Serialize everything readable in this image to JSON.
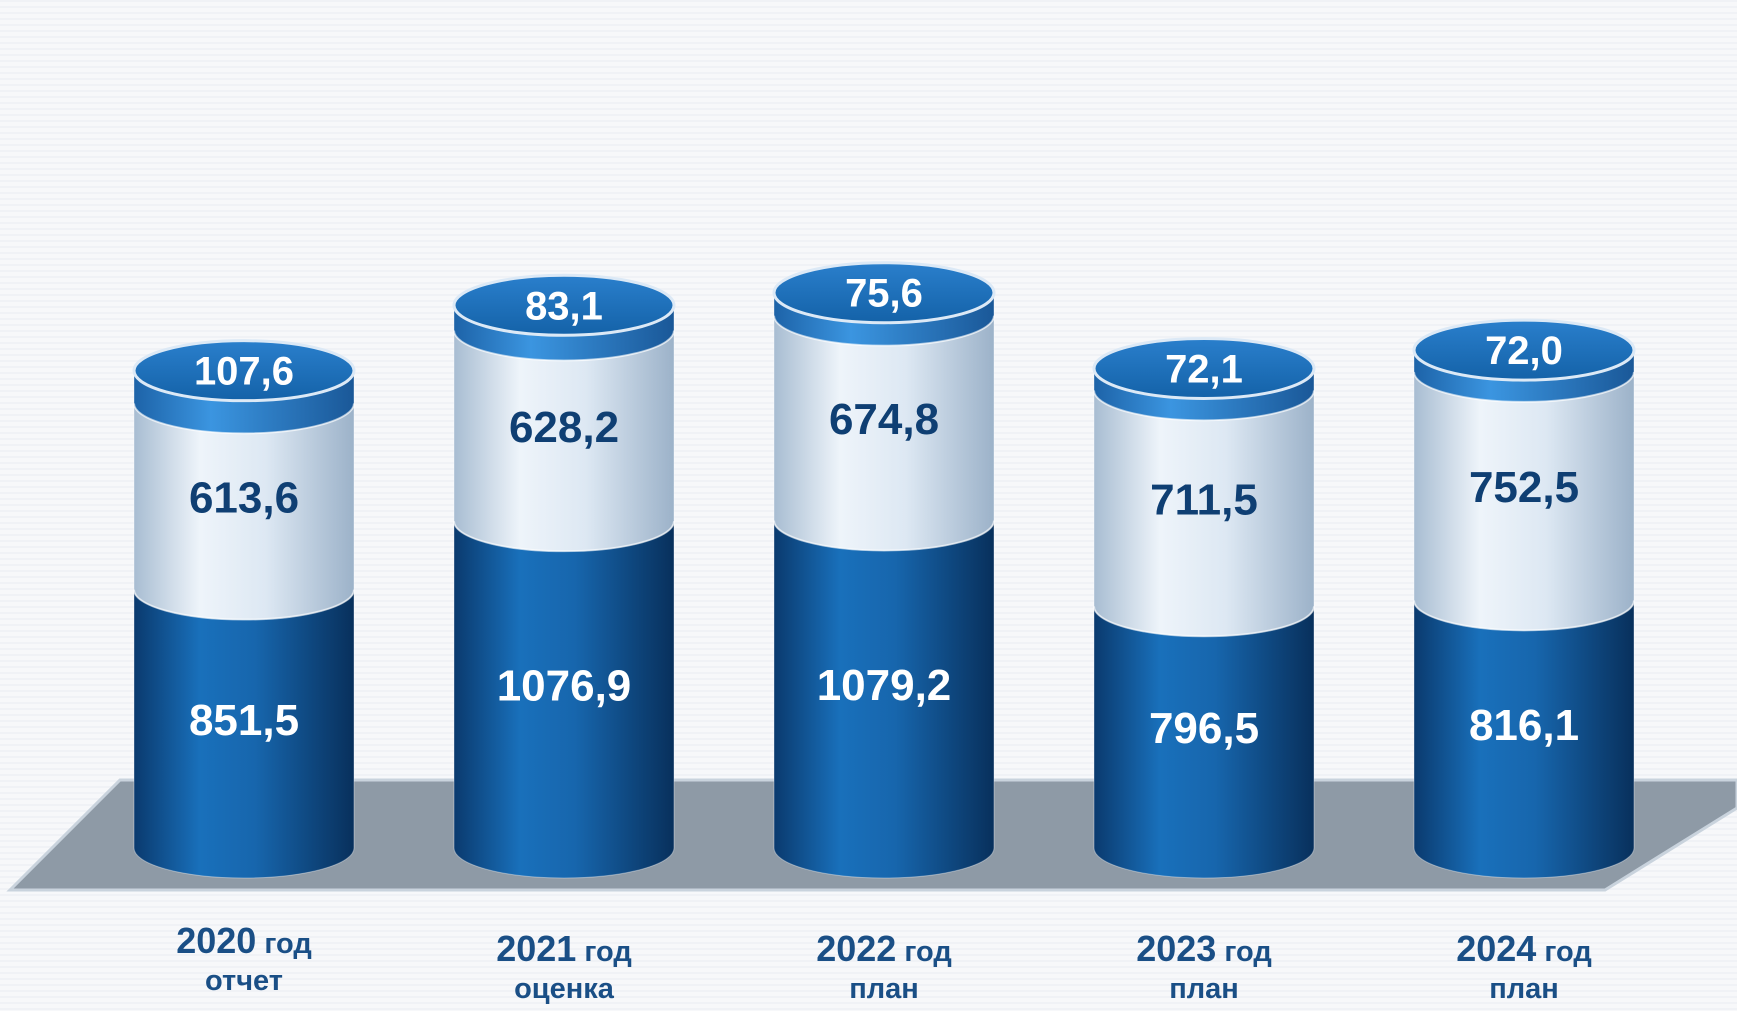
{
  "chart_data": {
    "type": "bar",
    "stacked": true,
    "style": "3d-cylinder",
    "categories": [
      {
        "year": "2020",
        "unit": "год",
        "sub": "отчет"
      },
      {
        "year": "2021",
        "unit": "год",
        "sub": "оценка"
      },
      {
        "year": "2022",
        "unit": "год",
        "sub": "план"
      },
      {
        "year": "2023",
        "unit": "год",
        "sub": "план"
      },
      {
        "year": "2024",
        "unit": "год",
        "sub": "план"
      }
    ],
    "series": [
      {
        "values": [
          851.5,
          1076.9,
          1079.2,
          796.5,
          816.1
        ],
        "labels": [
          "851,5",
          "1076,9",
          "1079,2",
          "796,5",
          "816,1"
        ],
        "color": "#1766ad"
      },
      {
        "values": [
          613.6,
          628.2,
          674.8,
          711.5,
          752.5
        ],
        "labels": [
          "613,6",
          "628,2",
          "674,8",
          "711,5",
          "752,5"
        ],
        "color": "#d6e4f1"
      },
      {
        "values": [
          107.6,
          83.1,
          75.6,
          72.1,
          72.0
        ],
        "labels": [
          "107,6",
          "83,1",
          "75,6",
          "72,1",
          "72,0"
        ],
        "color": "#2d86d6"
      }
    ],
    "legend": false,
    "grid": false,
    "title": "",
    "xlabel": "",
    "ylabel": ""
  }
}
